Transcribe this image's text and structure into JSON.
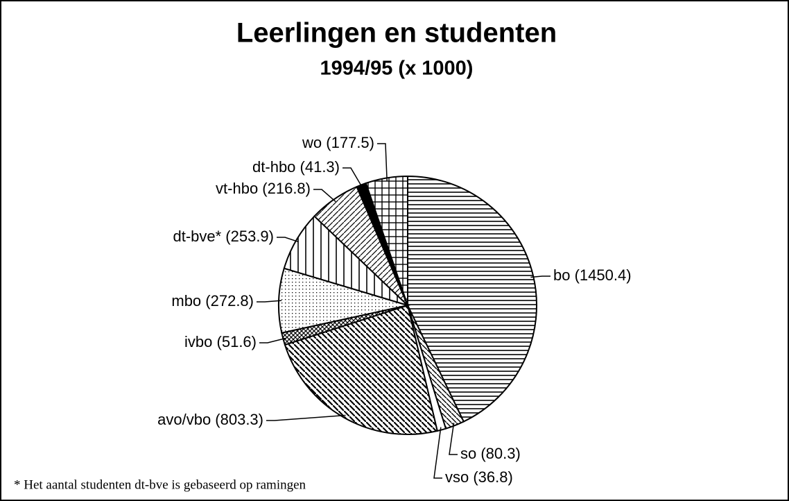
{
  "chart_data": {
    "type": "pie",
    "title": "Leerlingen en studenten",
    "subtitle": "1994/95 (x 1000)",
    "categories": [
      "bo (1450.4)",
      "so (80.3)",
      "vso (36.8)",
      "avo/vbo (803.3)",
      "ivbo (51.6)",
      "mbo (272.8)",
      "dt-bve* (253.9)",
      "vt-hbo (216.8)",
      "dt-hbo (41.3)",
      "wo (177.5)"
    ],
    "values": [
      1450.4,
      80.3,
      36.8,
      803.3,
      51.6,
      272.8,
      253.9,
      216.8,
      41.3,
      177.5
    ],
    "patterns": [
      "horizontal",
      "back-diagonal",
      "solid-white",
      "diagonal-dense",
      "crosshatch",
      "dots",
      "vertical",
      "diagonal",
      "solid-black",
      "grid"
    ],
    "footnote": "* Het aantal studenten dt-bve is gebaseerd op ramingen"
  }
}
